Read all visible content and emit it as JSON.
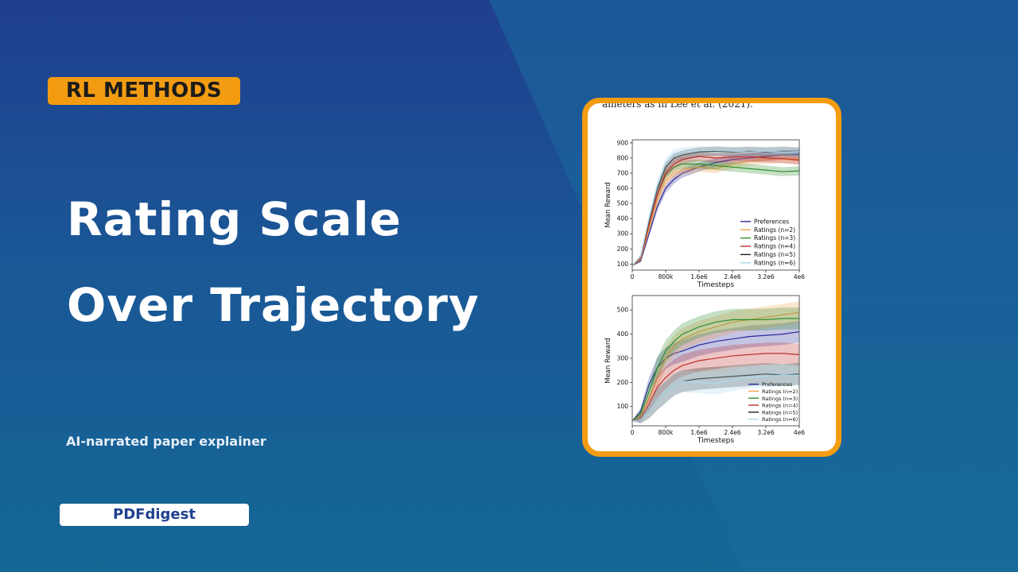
{
  "badge": "RL METHODS",
  "title": {
    "line1": "Rating Scale",
    "line2": "Over Trajectory"
  },
  "subtitle": "AI-narrated paper explainer",
  "brand": "PDFdigest",
  "card": {
    "snippet": "ameters as in Lee et al. (2021)."
  },
  "colors": {
    "accent": "#f39c12",
    "preferences": "#2b2b9b",
    "ratings_n2": "#f5a04a",
    "ratings_n3": "#2f8f2f",
    "ratings_n4": "#c0302a",
    "ratings_n5": "#222222",
    "ratings_n6": "#a9d9ea"
  },
  "chart_data": [
    {
      "type": "line",
      "xlabel": "Timesteps",
      "ylabel": "Mean Reward",
      "xlim": [
        0,
        4000000
      ],
      "ylim": [
        60,
        920
      ],
      "xticks": [
        0,
        800000,
        1600000,
        2400000,
        3200000,
        4000000
      ],
      "xtick_labels": [
        "0",
        "800k",
        "1.6e6",
        "2.4e6",
        "3.2e6",
        "4e6"
      ],
      "yticks": [
        100,
        200,
        300,
        400,
        500,
        600,
        700,
        800,
        900
      ],
      "ytick_labels": [
        "100",
        "200",
        "300",
        "400",
        "500",
        "600",
        "700",
        "800",
        "900"
      ],
      "legend": "bottom-right",
      "x": [
        0,
        200000,
        400000,
        600000,
        800000,
        1000000,
        1200000,
        1600000,
        2000000,
        2400000,
        2800000,
        3200000,
        3600000,
        4000000
      ],
      "series": [
        {
          "name": "Preferences",
          "values": [
            90,
            120,
            300,
            480,
            600,
            660,
            700,
            740,
            770,
            790,
            800,
            810,
            820,
            825
          ]
        },
        {
          "name": "Ratings (n=2)",
          "values": [
            90,
            130,
            330,
            520,
            650,
            700,
            720,
            740,
            730,
            760,
            780,
            790,
            800,
            790
          ]
        },
        {
          "name": "Ratings (n=3)",
          "values": [
            90,
            140,
            360,
            560,
            690,
            740,
            760,
            760,
            750,
            740,
            730,
            720,
            710,
            715
          ]
        },
        {
          "name": "Ratings (n=4)",
          "values": [
            90,
            140,
            360,
            560,
            700,
            760,
            790,
            810,
            800,
            805,
            810,
            800,
            795,
            785
          ]
        },
        {
          "name": "Ratings (n=5)",
          "values": [
            90,
            150,
            390,
            600,
            740,
            800,
            820,
            840,
            845,
            840,
            845,
            840,
            845,
            840
          ]
        },
        {
          "name": "Ratings (n=6)",
          "values": [
            90,
            150,
            400,
            620,
            770,
            830,
            840,
            850,
            850,
            845,
            840,
            845,
            840,
            840
          ]
        }
      ]
    },
    {
      "type": "line",
      "xlabel": "Timesteps",
      "ylabel": "Mean Reward",
      "xlim": [
        0,
        4000000
      ],
      "ylim": [
        20,
        560
      ],
      "xticks": [
        0,
        800000,
        1600000,
        2400000,
        3200000,
        4000000
      ],
      "xtick_labels": [
        "0",
        "800k",
        "1.6e6",
        "2.4e6",
        "3.2e6",
        "4e6"
      ],
      "yticks": [
        100,
        200,
        300,
        400,
        500
      ],
      "ytick_labels": [
        "100",
        "200",
        "300",
        "400",
        "500"
      ],
      "legend": "bottom-right",
      "x": [
        0,
        200000,
        400000,
        600000,
        800000,
        1000000,
        1200000,
        1600000,
        2000000,
        2400000,
        2800000,
        3200000,
        3600000,
        4000000
      ],
      "series": [
        {
          "name": "Preferences",
          "values": [
            40,
            80,
            190,
            260,
            300,
            320,
            330,
            355,
            370,
            380,
            390,
            395,
            400,
            410
          ]
        },
        {
          "name": "Ratings (n=2)",
          "values": [
            40,
            60,
            130,
            220,
            300,
            350,
            380,
            410,
            430,
            450,
            460,
            470,
            480,
            490
          ]
        },
        {
          "name": "Ratings (n=3)",
          "values": [
            40,
            70,
            160,
            260,
            330,
            370,
            400,
            430,
            450,
            460,
            460,
            460,
            465,
            465
          ]
        },
        {
          "name": "Ratings (n=4)",
          "values": [
            40,
            50,
            110,
            180,
            220,
            250,
            270,
            290,
            300,
            310,
            315,
            320,
            320,
            315
          ]
        },
        {
          "name": "Ratings (n=5)",
          "values": [
            40,
            45,
            80,
            130,
            160,
            190,
            205,
            215,
            220,
            225,
            230,
            235,
            230,
            235
          ]
        },
        {
          "name": "Ratings (n=6)",
          "values": [
            40,
            45,
            80,
            130,
            160,
            190,
            205,
            200,
            195,
            210,
            220,
            225,
            230,
            230
          ]
        }
      ]
    }
  ]
}
